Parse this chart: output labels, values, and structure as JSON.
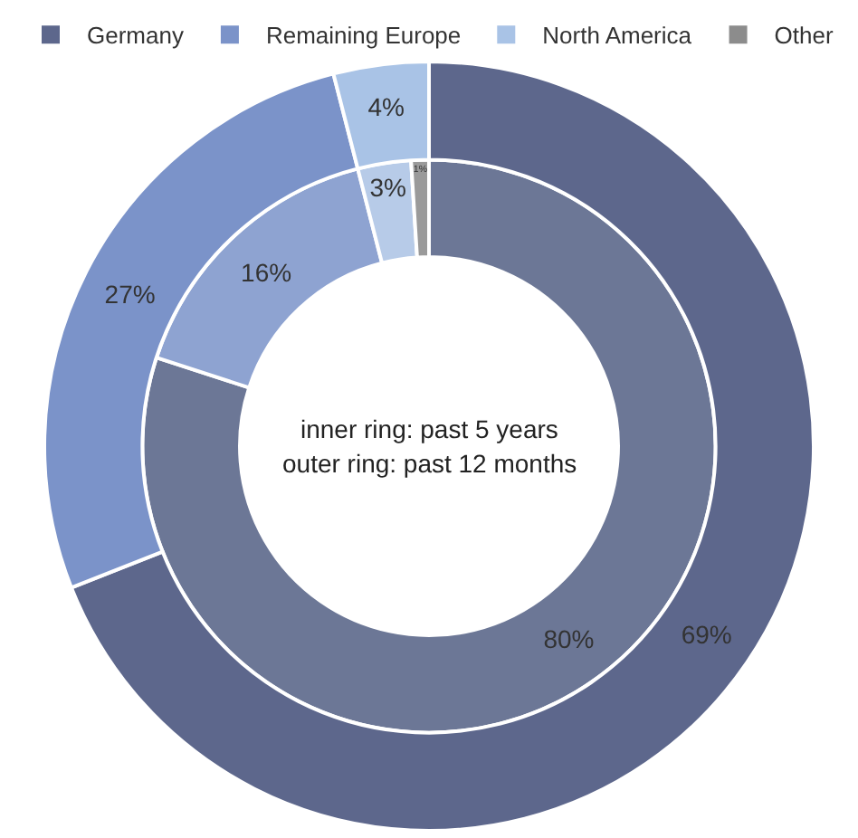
{
  "chart_data": {
    "type": "donut",
    "categories": [
      "Germany",
      "Remaining Europe",
      "North America",
      "Other"
    ],
    "series": [
      {
        "colors": [
          "#6c7796",
          "#8ea3d1",
          "#b7cbe8",
          "#9a9a9a"
        ],
        "values": [
          80,
          16,
          3,
          1
        ],
        "value_labels": [
          "80%",
          "16%",
          "3%",
          "1%"
        ]
      },
      {
        "colors": [
          "#5d678c",
          "#7b93c9",
          "#a9c3e6",
          "#8c8c8c"
        ],
        "values": [
          69,
          27,
          4,
          0
        ],
        "value_labels": [
          "69%",
          "27%",
          "4%",
          null
        ]
      }
    ],
    "annotations": [
      "inner ring: past 5 years",
      "outer ring: past 12 months"
    ],
    "legend": "top"
  }
}
